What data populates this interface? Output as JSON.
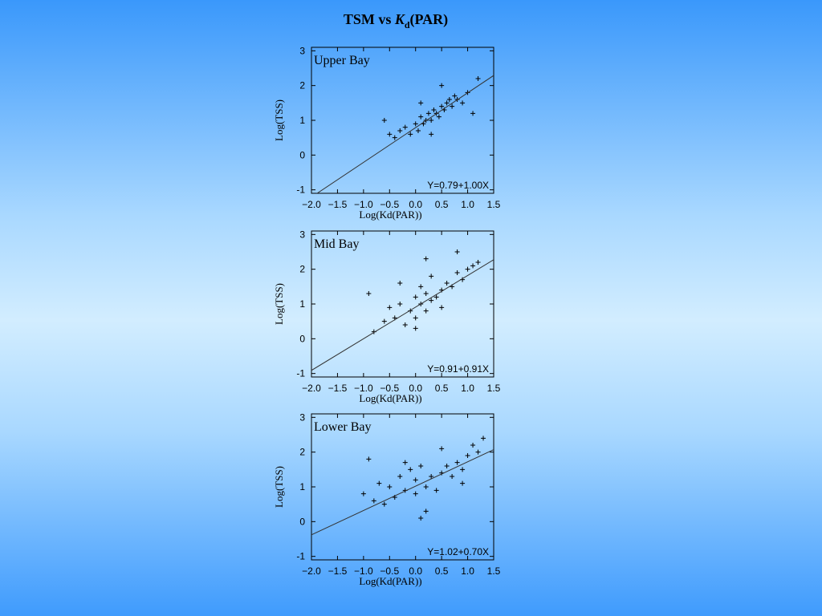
{
  "slide_title": [
    "TSM vs ",
    "K",
    "d",
    "(PAR)"
  ],
  "chart_data": [
    {
      "type": "scatter",
      "label": "Upper Bay",
      "annotation": "Y=0.79+1.00X",
      "fit": {
        "intercept": 0.79,
        "slope": 1.0
      },
      "xlabel": "Log(Kd(PAR))",
      "ylabel": "Log(TSS)",
      "color": "#000000",
      "xlim": [
        -2,
        1.5
      ],
      "ylim": [
        -1.1,
        3.1
      ],
      "xticks": [
        {
          "value": -2,
          "label": "−2.0"
        },
        {
          "value": -1.5,
          "label": "−1.5"
        },
        {
          "value": -1,
          "label": "−1.0"
        },
        {
          "value": -0.5,
          "label": "−0.5"
        },
        {
          "value": 0,
          "label": "0.0"
        },
        0.5,
        {
          "value": 1,
          "label": "1.0"
        },
        1.5
      ],
      "yticks": [
        -1,
        0,
        1,
        2,
        3
      ],
      "x": [
        -0.5,
        -0.4,
        -0.3,
        -0.2,
        -0.1,
        0,
        0.05,
        0.1,
        0.15,
        0.2,
        0.25,
        0.3,
        0.35,
        0.4,
        0.45,
        0.5,
        0.55,
        0.6,
        0.65,
        0.7,
        0.75,
        0.8,
        0.9,
        1.0,
        1.1,
        1.2,
        -0.6,
        0.1,
        0.3,
        0.5
      ],
      "y": [
        0.6,
        0.5,
        0.7,
        0.8,
        0.6,
        0.9,
        0.7,
        1.1,
        0.9,
        1.0,
        1.2,
        1.0,
        1.3,
        1.2,
        1.1,
        1.4,
        1.3,
        1.5,
        1.6,
        1.4,
        1.7,
        1.6,
        1.5,
        1.8,
        1.2,
        2.2,
        1.0,
        1.5,
        0.6,
        2.0
      ]
    },
    {
      "type": "scatter",
      "label": "Mid Bay",
      "annotation": "Y=0.91+0.91X",
      "fit": {
        "intercept": 0.91,
        "slope": 0.91
      },
      "xlabel": "Log(Kd(PAR))",
      "ylabel": "Log(TSS)",
      "color": "#000000",
      "xlim": [
        -2,
        1.5
      ],
      "ylim": [
        -1.1,
        3.1
      ],
      "xticks": [
        {
          "value": -2,
          "label": "−2.0"
        },
        {
          "value": -1.5,
          "label": "−1.5"
        },
        {
          "value": -1,
          "label": "−1.0"
        },
        {
          "value": -0.5,
          "label": "−0.5"
        },
        {
          "value": 0,
          "label": "0.0"
        },
        0.5,
        {
          "value": 1,
          "label": "1.0"
        },
        1.5
      ],
      "yticks": [
        -1,
        0,
        1,
        2,
        3
      ],
      "x": [
        -0.9,
        -0.8,
        -0.6,
        -0.5,
        -0.4,
        -0.3,
        -0.2,
        -0.1,
        0,
        0,
        0.1,
        0.1,
        0.2,
        0.2,
        0.3,
        0.3,
        0.4,
        0.5,
        0.6,
        0.7,
        0.8,
        0.9,
        1.0,
        1.1,
        1.2,
        -0.3,
        0,
        0.2,
        0.5,
        0.8
      ],
      "y": [
        1.3,
        0.2,
        0.5,
        0.9,
        0.6,
        1.0,
        0.4,
        0.8,
        1.2,
        0.3,
        1.0,
        1.5,
        0.8,
        1.3,
        1.1,
        1.8,
        1.2,
        1.4,
        1.6,
        1.5,
        1.9,
        1.7,
        2.0,
        2.1,
        2.2,
        1.6,
        0.6,
        2.3,
        0.9,
        2.5
      ]
    },
    {
      "type": "scatter",
      "label": "Lower Bay",
      "annotation": "Y=1.02+0.70X",
      "fit": {
        "intercept": 1.02,
        "slope": 0.7
      },
      "xlabel": "Log(Kd(PAR))",
      "ylabel": "Log(TSS)",
      "color": "#000000",
      "xlim": [
        -2,
        1.5
      ],
      "ylim": [
        -1.1,
        3.1
      ],
      "xticks": [
        {
          "value": -2,
          "label": "−2.0"
        },
        {
          "value": -1.5,
          "label": "−1.5"
        },
        {
          "value": -1,
          "label": "−1.0"
        },
        {
          "value": -0.5,
          "label": "−0.5"
        },
        {
          "value": 0,
          "label": "0.0"
        },
        0.5,
        {
          "value": 1,
          "label": "1.0"
        },
        1.5
      ],
      "yticks": [
        -1,
        0,
        1,
        2,
        3
      ],
      "x": [
        -1.0,
        -0.9,
        -0.8,
        -0.7,
        -0.6,
        -0.5,
        -0.4,
        -0.3,
        -0.2,
        -0.1,
        0,
        0,
        0.1,
        0.1,
        0.2,
        0.3,
        0.4,
        0.5,
        0.6,
        0.7,
        0.8,
        0.9,
        1.0,
        1.1,
        1.2,
        1.3,
        -0.2,
        0.2,
        0.5,
        0.9
      ],
      "y": [
        0.8,
        1.8,
        0.6,
        1.1,
        0.5,
        1.0,
        0.7,
        1.3,
        0.9,
        1.5,
        0.8,
        1.2,
        0.1,
        1.6,
        1.0,
        1.3,
        0.9,
        1.4,
        1.6,
        1.3,
        1.7,
        1.5,
        1.9,
        2.2,
        2.0,
        2.4,
        1.7,
        0.3,
        2.1,
        1.1
      ]
    }
  ]
}
